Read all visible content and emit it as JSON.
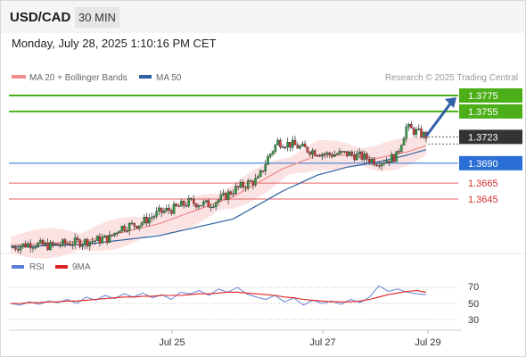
{
  "header": {
    "symbol": "USD/CAD",
    "timeframe": "30 MIN",
    "timestamp": "Monday, July 28, 2025 1:10:16 PM CET"
  },
  "chart_data": [
    {
      "type": "candlestick",
      "legend": [
        {
          "label": "MA 20 + Bollinger Bands",
          "color": "#f08c8c"
        },
        {
          "label": "MA 50",
          "color": "#2e5f9e"
        }
      ],
      "credit": "Research © 2025 Trading Central",
      "y_tick_labels": [
        "1.3775",
        "1.3755",
        "1.3723",
        "1.3690",
        "1.3665",
        "1.3645"
      ],
      "x_tick_labels": [
        "Jul 25",
        "Jul 27",
        "Jul 29"
      ],
      "levels": [
        {
          "value": 1.3775,
          "label": "1.3775",
          "kind": "resistance",
          "color": "#4caf1a"
        },
        {
          "value": 1.3755,
          "label": "1.3755",
          "kind": "resistance",
          "color": "#4caf1a"
        },
        {
          "value": 1.3723,
          "label": "1.3723",
          "kind": "last-price",
          "color": "#333333"
        },
        {
          "value": 1.369,
          "label": "1.3690",
          "kind": "pivot",
          "color": "#2a6fd6"
        },
        {
          "value": 1.3665,
          "label": "1.3665",
          "kind": "support",
          "color": "#e06060"
        },
        {
          "value": 1.3645,
          "label": "1.3645",
          "kind": "support",
          "color": "#e06060"
        }
      ],
      "close_path": [
        [
          0,
          1.3584
        ],
        [
          8,
          1.3589
        ],
        [
          16,
          1.3586
        ],
        [
          24,
          1.359
        ],
        [
          32,
          1.3592
        ],
        [
          40,
          1.3596
        ],
        [
          44,
          1.3609
        ],
        [
          52,
          1.3614
        ],
        [
          60,
          1.3628
        ],
        [
          66,
          1.3633
        ],
        [
          72,
          1.3641
        ],
        [
          80,
          1.3638
        ],
        [
          86,
          1.3647
        ],
        [
          90,
          1.3656
        ],
        [
          96,
          1.3665
        ],
        [
          100,
          1.3669
        ],
        [
          104,
          1.3697
        ],
        [
          108,
          1.3717
        ],
        [
          114,
          1.3713
        ],
        [
          120,
          1.3707
        ],
        [
          128,
          1.3701
        ],
        [
          136,
          1.3702
        ],
        [
          142,
          1.3698
        ],
        [
          148,
          1.3692
        ],
        [
          152,
          1.3694
        ],
        [
          156,
          1.3699
        ],
        [
          160,
          1.3735
        ],
        [
          164,
          1.3729
        ],
        [
          168,
          1.3724
        ]
      ],
      "ma50_path": [
        [
          0,
          1.3585
        ],
        [
          30,
          1.3588
        ],
        [
          60,
          1.3599
        ],
        [
          90,
          1.362
        ],
        [
          110,
          1.3655
        ],
        [
          124,
          1.3675
        ],
        [
          136,
          1.3685
        ],
        [
          148,
          1.3691
        ],
        [
          160,
          1.37
        ],
        [
          168,
          1.3707
        ]
      ],
      "ma20_path": [
        [
          0,
          1.3587
        ],
        [
          30,
          1.3592
        ],
        [
          60,
          1.3614
        ],
        [
          90,
          1.3648
        ],
        [
          110,
          1.3683
        ],
        [
          124,
          1.37
        ],
        [
          136,
          1.37
        ],
        [
          148,
          1.3696
        ],
        [
          160,
          1.3704
        ],
        [
          168,
          1.3712
        ]
      ],
      "projected_target": 1.3775
    },
    {
      "type": "line",
      "legend": [
        {
          "label": "RSI",
          "color": "#5b7fd0"
        },
        {
          "label": "9MA",
          "color": "#e02020"
        }
      ],
      "y_tick_labels": [
        "70",
        "50",
        "30"
      ],
      "reference_lines": [
        70,
        50,
        30
      ],
      "series": [
        {
          "name": "RSI",
          "values": [
            50,
            48,
            52,
            49,
            53,
            51,
            55,
            50,
            58,
            54,
            60,
            56,
            62,
            58,
            63,
            57,
            61,
            55,
            64,
            62,
            66,
            60,
            68,
            64,
            70,
            62,
            58,
            55,
            60,
            52,
            57,
            48,
            54,
            50,
            53,
            49,
            55,
            51,
            58,
            72,
            65,
            68,
            64,
            62,
            61
          ]
        },
        {
          "name": "9MA",
          "values": [
            50,
            50,
            51,
            51,
            52,
            52,
            53,
            53,
            54,
            55,
            56,
            57,
            58,
            58,
            59,
            59,
            60,
            60,
            60,
            61,
            62,
            62,
            63,
            64,
            64,
            63,
            62,
            61,
            60,
            58,
            57,
            55,
            54,
            53,
            52,
            52,
            52,
            53,
            55,
            58,
            61,
            63,
            65,
            66,
            64
          ]
        }
      ]
    }
  ]
}
